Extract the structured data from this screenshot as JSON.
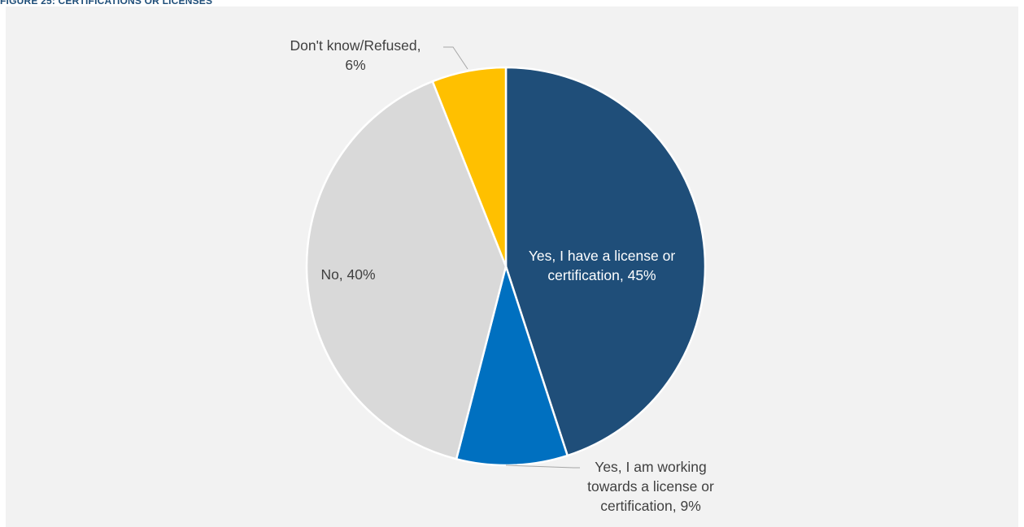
{
  "header": {
    "title": "FIGURE 25: CERTIFICATIONS OR LICENSES"
  },
  "chart_data": {
    "type": "pie",
    "title": "",
    "start_angle_deg": 0,
    "direction": "clockwise",
    "slices": [
      {
        "label_lines": [
          "Yes, I have a license or",
          "certification, 45%"
        ],
        "label": "Yes, I have a license or certification",
        "value": 45,
        "color": "#1f4e79",
        "label_color": "#ffffff",
        "label_position": "inside"
      },
      {
        "label_lines": [
          "Yes, I am working",
          "towards a license or",
          "certification, 9%"
        ],
        "label": "Yes, I am working towards a license or certification",
        "value": 9,
        "color": "#0070c0",
        "label_color": "#404040",
        "label_position": "outside-bottom-right"
      },
      {
        "label_lines": [
          "No, 40%"
        ],
        "label": "No",
        "value": 40,
        "color": "#d9d9d9",
        "label_color": "#404040",
        "label_position": "inside"
      },
      {
        "label_lines": [
          "Don't know/Refused,",
          "6%"
        ],
        "label": "Don't know/Refused",
        "value": 6,
        "color": "#ffc000",
        "label_color": "#404040",
        "label_position": "outside-top-left"
      }
    ]
  }
}
